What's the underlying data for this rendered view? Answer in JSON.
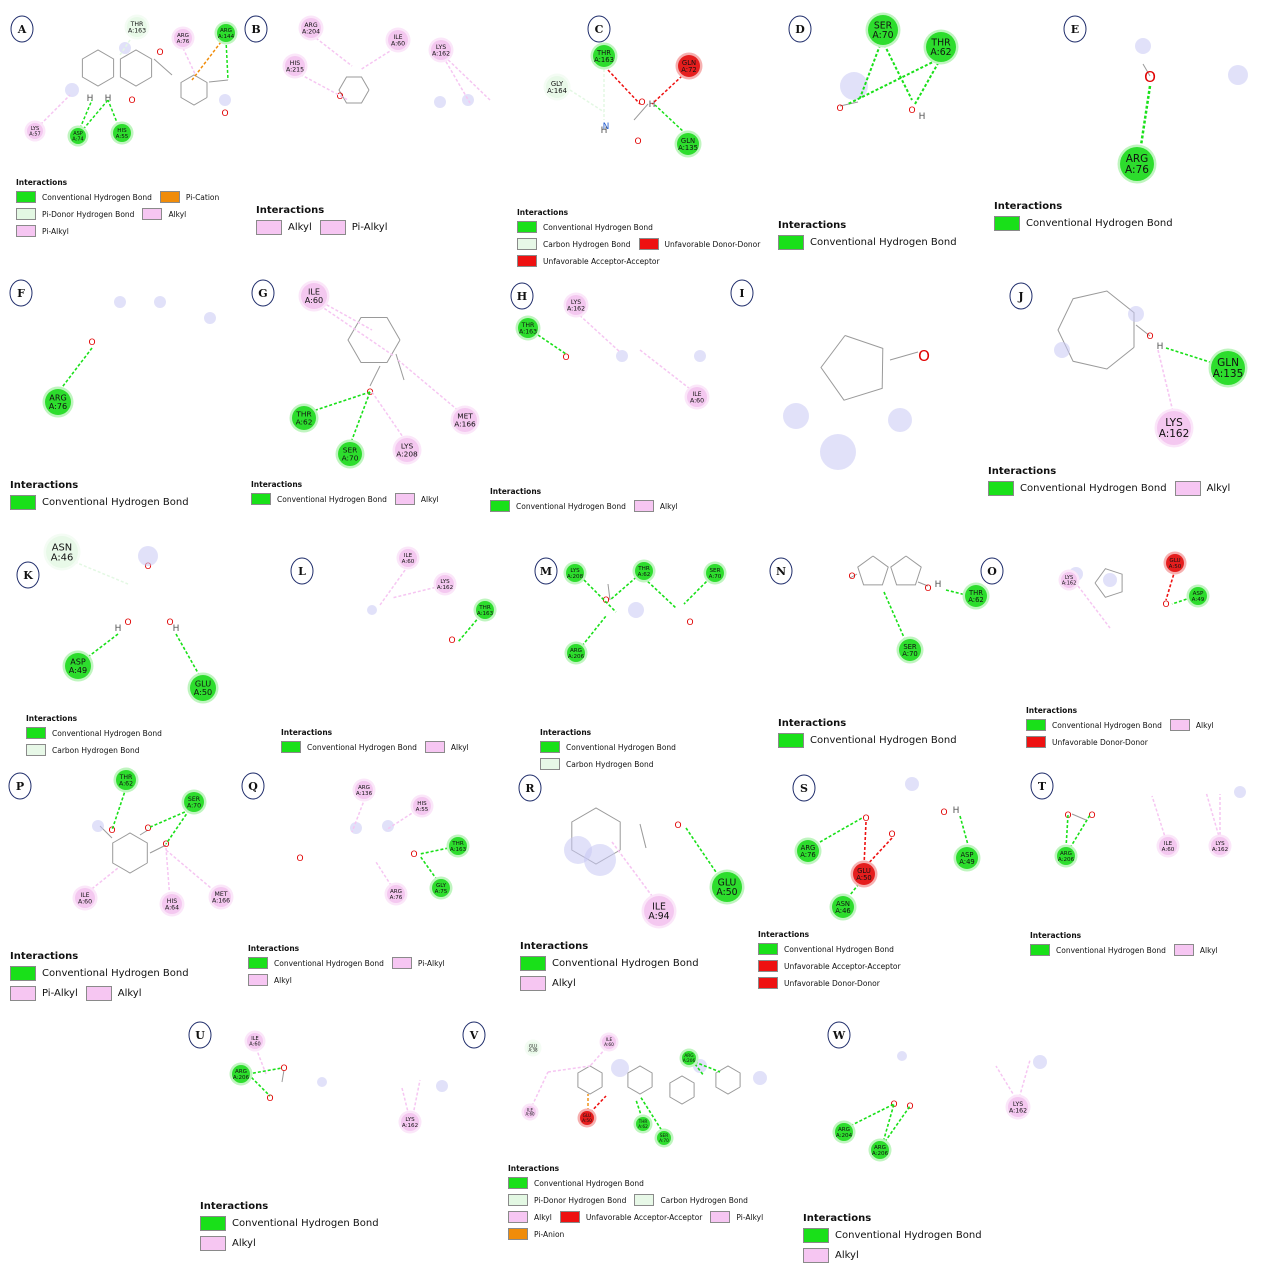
{
  "panels": [
    {
      "letter": "A",
      "legend": {
        "title": "Interactions",
        "items": [
          {
            "label": "Conventional Hydrogen Bond",
            "color": "green"
          },
          {
            "label": "Pi-Cation",
            "color": "orange"
          },
          {
            "label": "Pi-Donor Hydrogen Bond",
            "color": "pdonor"
          },
          {
            "label": "Alkyl",
            "color": "alkyl"
          },
          {
            "label": "Pi-Alkyl",
            "color": "alkyl"
          }
        ]
      },
      "residues": [
        {
          "text": "THR\nA:163",
          "kind": "pdonor"
        },
        {
          "text": "ARG\nA:76",
          "kind": "alkyl"
        },
        {
          "text": "ARG\nA:144",
          "kind": "green"
        },
        {
          "text": "LYS\nA:57",
          "kind": "alkyl"
        },
        {
          "text": "ASP\nA:74",
          "kind": "green"
        },
        {
          "text": "HIS\nA:55",
          "kind": "green"
        }
      ]
    },
    {
      "letter": "B",
      "legend": {
        "title": "Interactions",
        "items": [
          {
            "label": "Alkyl",
            "color": "alkyl"
          },
          {
            "label": "Pi-Alkyl",
            "color": "alkyl"
          }
        ]
      },
      "residues": [
        {
          "text": "ARG\nA:204",
          "kind": "alkyl"
        },
        {
          "text": "ILE\nA:60",
          "kind": "alkyl"
        },
        {
          "text": "HIS\nA:215",
          "kind": "alkyl"
        },
        {
          "text": "LYS\nA:162",
          "kind": "alkyl"
        }
      ]
    },
    {
      "letter": "C",
      "legend": {
        "title": "Interactions",
        "items": [
          {
            "label": "Conventional Hydrogen Bond",
            "color": "green"
          },
          {
            "label": "Carbon Hydrogen Bond",
            "color": "carbon"
          },
          {
            "label": "Unfavorable Donor-Donor",
            "color": "red"
          },
          {
            "label": "Unfavorable Acceptor-Acceptor",
            "color": "red"
          }
        ]
      },
      "residues": [
        {
          "text": "THR\nA:163",
          "kind": "green"
        },
        {
          "text": "GLN\nA:72",
          "kind": "red"
        },
        {
          "text": "GLY\nA:164",
          "kind": "pdonor"
        },
        {
          "text": "GLN\nA:135",
          "kind": "green"
        }
      ]
    },
    {
      "letter": "D",
      "legend": {
        "title": "Interactions",
        "items": [
          {
            "label": "Conventional Hydrogen Bond",
            "color": "green"
          }
        ]
      },
      "residues": [
        {
          "text": "SER\nA:70",
          "kind": "green"
        },
        {
          "text": "THR\nA:62",
          "kind": "green"
        }
      ]
    },
    {
      "letter": "E",
      "legend": {
        "title": "Interactions",
        "items": [
          {
            "label": "Conventional Hydrogen Bond",
            "color": "green"
          }
        ]
      },
      "residues": [
        {
          "text": "ARG\nA:76",
          "kind": "green"
        }
      ]
    },
    {
      "letter": "F",
      "legend": {
        "title": "Interactions",
        "items": [
          {
            "label": "Conventional Hydrogen Bond",
            "color": "green"
          }
        ]
      },
      "residues": [
        {
          "text": "ARG\nA:76",
          "kind": "green"
        }
      ]
    },
    {
      "letter": "G",
      "legend": {
        "title": "Interactions",
        "items": [
          {
            "label": "Conventional Hydrogen Bond",
            "color": "green"
          },
          {
            "label": "Alkyl",
            "color": "alkyl"
          }
        ]
      },
      "residues": [
        {
          "text": "ILE\nA:60",
          "kind": "alkyl"
        },
        {
          "text": "THR\nA:62",
          "kind": "green"
        },
        {
          "text": "SER\nA:70",
          "kind": "green"
        },
        {
          "text": "LYS\nA:208",
          "kind": "alkyl"
        },
        {
          "text": "MET\nA:166",
          "kind": "alkyl"
        }
      ]
    },
    {
      "letter": "H",
      "legend": {
        "title": "Interactions",
        "items": [
          {
            "label": "Conventional Hydrogen Bond",
            "color": "green"
          },
          {
            "label": "Alkyl",
            "color": "alkyl"
          }
        ]
      },
      "residues": [
        {
          "text": "LYS\nA:162",
          "kind": "alkyl"
        },
        {
          "text": "THR\nA:163",
          "kind": "green"
        },
        {
          "text": "ILE\nA:60",
          "kind": "alkyl"
        }
      ]
    },
    {
      "letter": "I",
      "legend": null,
      "residues": []
    },
    {
      "letter": "J",
      "legend": {
        "title": "Interactions",
        "items": [
          {
            "label": "Conventional Hydrogen Bond",
            "color": "green"
          },
          {
            "label": "Alkyl",
            "color": "alkyl"
          }
        ]
      },
      "residues": [
        {
          "text": "GLN\nA:135",
          "kind": "green"
        },
        {
          "text": "LYS\nA:162",
          "kind": "alkyl"
        }
      ]
    },
    {
      "letter": "K",
      "legend": {
        "title": "Interactions",
        "items": [
          {
            "label": "Conventional Hydrogen Bond",
            "color": "green"
          },
          {
            "label": "Carbon Hydrogen Bond",
            "color": "carbon"
          }
        ]
      },
      "residues": [
        {
          "text": "ASN\nA:46",
          "kind": "pdonor"
        },
        {
          "text": "ASP\nA:49",
          "kind": "green"
        },
        {
          "text": "GLU\nA:50",
          "kind": "green"
        }
      ]
    },
    {
      "letter": "L",
      "legend": {
        "title": "Interactions",
        "items": [
          {
            "label": "Conventional Hydrogen Bond",
            "color": "green"
          },
          {
            "label": "Alkyl",
            "color": "alkyl"
          }
        ]
      },
      "residues": [
        {
          "text": "ILE\nA:60",
          "kind": "alkyl"
        },
        {
          "text": "LYS\nA:162",
          "kind": "alkyl"
        },
        {
          "text": "THR\nA:163",
          "kind": "green"
        }
      ]
    },
    {
      "letter": "M",
      "legend": {
        "title": "Interactions",
        "items": [
          {
            "label": "Conventional Hydrogen Bond",
            "color": "green"
          },
          {
            "label": "Carbon Hydrogen Bond",
            "color": "carbon"
          }
        ]
      },
      "residues": [
        {
          "text": "LYS\nA:208",
          "kind": "green"
        },
        {
          "text": "THR\nA:62",
          "kind": "green"
        },
        {
          "text": "SER\nA:70",
          "kind": "green"
        },
        {
          "text": "ARG\nA:206",
          "kind": "green"
        }
      ]
    },
    {
      "letter": "N",
      "legend": {
        "title": "Interactions",
        "items": [
          {
            "label": "Conventional Hydrogen Bond",
            "color": "green"
          }
        ]
      },
      "residues": [
        {
          "text": "THR\nA:62",
          "kind": "green"
        },
        {
          "text": "SER\nA:70",
          "kind": "green"
        }
      ]
    },
    {
      "letter": "O",
      "legend": {
        "title": "Interactions",
        "items": [
          {
            "label": "Conventional Hydrogen Bond",
            "color": "green"
          },
          {
            "label": "Alkyl",
            "color": "alkyl"
          },
          {
            "label": "Unfavorable Donor-Donor",
            "color": "red"
          }
        ]
      },
      "residues": [
        {
          "text": "LYS\nA:162",
          "kind": "alkyl"
        },
        {
          "text": "GLU\nA:50",
          "kind": "red"
        },
        {
          "text": "ASP\nA:49",
          "kind": "green"
        }
      ]
    },
    {
      "letter": "P",
      "legend": {
        "title": "Interactions",
        "items": [
          {
            "label": "Conventional Hydrogen Bond",
            "color": "green"
          },
          {
            "label": "Pi-Alkyl",
            "color": "alkyl"
          },
          {
            "label": "Alkyl",
            "color": "alkyl"
          }
        ]
      },
      "residues": [
        {
          "text": "THR\nA:62",
          "kind": "green"
        },
        {
          "text": "SER\nA:70",
          "kind": "green"
        },
        {
          "text": "ILE\nA:60",
          "kind": "alkyl"
        },
        {
          "text": "HIS\nA:64",
          "kind": "alkyl"
        },
        {
          "text": "MET\nA:166",
          "kind": "alkyl"
        }
      ]
    },
    {
      "letter": "Q",
      "legend": {
        "title": "Interactions",
        "items": [
          {
            "label": "Conventional Hydrogen Bond",
            "color": "green"
          },
          {
            "label": "Pi-Alkyl",
            "color": "alkyl"
          },
          {
            "label": "Alkyl",
            "color": "alkyl"
          }
        ]
      },
      "residues": [
        {
          "text": "ARG\nA:136",
          "kind": "alkyl"
        },
        {
          "text": "HIS\nA:55",
          "kind": "alkyl"
        },
        {
          "text": "THR\nA:163",
          "kind": "green"
        },
        {
          "text": "GLY\nA:75",
          "kind": "green"
        },
        {
          "text": "ARG\nA:76",
          "kind": "alkyl"
        }
      ]
    },
    {
      "letter": "R",
      "legend": {
        "title": "Interactions",
        "items": [
          {
            "label": "Conventional Hydrogen Bond",
            "color": "green"
          },
          {
            "label": "Alkyl",
            "color": "alkyl"
          }
        ]
      },
      "residues": [
        {
          "text": "GLU\nA:50",
          "kind": "green"
        },
        {
          "text": "ILE\nA:94",
          "kind": "alkyl"
        }
      ]
    },
    {
      "letter": "S",
      "legend": {
        "title": "Interactions",
        "items": [
          {
            "label": "Conventional Hydrogen Bond",
            "color": "green"
          },
          {
            "label": "Unfavorable Acceptor-Acceptor",
            "color": "red"
          },
          {
            "label": "Unfavorable Donor-Donor",
            "color": "red"
          }
        ]
      },
      "residues": [
        {
          "text": "ARG\nA:76",
          "kind": "green"
        },
        {
          "text": "ASP\nA:49",
          "kind": "green"
        },
        {
          "text": "GLU\nA:50",
          "kind": "red"
        },
        {
          "text": "ASN\nA:46",
          "kind": "green"
        }
      ]
    },
    {
      "letter": "T",
      "legend": {
        "title": "Interactions",
        "items": [
          {
            "label": "Conventional Hydrogen Bond",
            "color": "green"
          },
          {
            "label": "Alkyl",
            "color": "alkyl"
          }
        ]
      },
      "residues": [
        {
          "text": "ARG\nA:206",
          "kind": "green"
        },
        {
          "text": "ILE\nA:60",
          "kind": "alkyl"
        },
        {
          "text": "LYS\nA:162",
          "kind": "alkyl"
        }
      ]
    },
    {
      "letter": "U",
      "legend": {
        "title": "Interactions",
        "items": [
          {
            "label": "Conventional Hydrogen Bond",
            "color": "green"
          },
          {
            "label": "Alkyl",
            "color": "alkyl"
          }
        ]
      },
      "residues": [
        {
          "text": "ILE\nA:60",
          "kind": "alkyl"
        },
        {
          "text": "ARG\nA:206",
          "kind": "green"
        },
        {
          "text": "LYS\nA:162",
          "kind": "alkyl"
        }
      ]
    },
    {
      "letter": "V",
      "legend": {
        "title": "Interactions",
        "items": [
          {
            "label": "Conventional Hydrogen Bond",
            "color": "green"
          },
          {
            "label": "Pi-Donor Hydrogen Bond",
            "color": "pdonor"
          },
          {
            "label": "Carbon Hydrogen Bond",
            "color": "carbon"
          },
          {
            "label": "Alkyl",
            "color": "alkyl"
          },
          {
            "label": "Unfavorable Acceptor-Acceptor",
            "color": "red"
          },
          {
            "label": "Pi-Alkyl",
            "color": "alkyl"
          },
          {
            "label": "Pi-Anion",
            "color": "orange"
          }
        ]
      },
      "residues": [
        {
          "text": "GLU\nA:38",
          "kind": "pdonor"
        },
        {
          "text": "ILE\nA:60",
          "kind": "alkyl"
        },
        {
          "text": "ARG\nA:206",
          "kind": "green"
        },
        {
          "text": "ILE\nA:60",
          "kind": "alkyl"
        },
        {
          "text": "GLU\nA:50",
          "kind": "red"
        },
        {
          "text": "THR\nA:62",
          "kind": "green"
        },
        {
          "text": "SER\nA:70",
          "kind": "green"
        }
      ]
    },
    {
      "letter": "W",
      "legend": {
        "title": "Interactions",
        "items": [
          {
            "label": "Conventional Hydrogen Bond",
            "color": "green"
          },
          {
            "label": "Alkyl",
            "color": "alkyl"
          }
        ]
      },
      "residues": [
        {
          "text": "ARG\nA:204",
          "kind": "green"
        },
        {
          "text": "ARG\nA:206",
          "kind": "green"
        },
        {
          "text": "LYS\nA:162",
          "kind": "alkyl"
        }
      ]
    }
  ],
  "atom_labels": {
    "oxygen": "O",
    "hydrogen": "H",
    "nitrogen": "N"
  },
  "colors": {
    "green": "#19e019",
    "alkyl": "#f6c6f2",
    "pdonor": "#e3f8e3",
    "red": "#ee1111",
    "orange": "#f08c0a",
    "carbon": "#e7f8e7",
    "bond": "#9a9a9a",
    "oxygen": "#e00000",
    "halo": "#c8c8f4"
  }
}
